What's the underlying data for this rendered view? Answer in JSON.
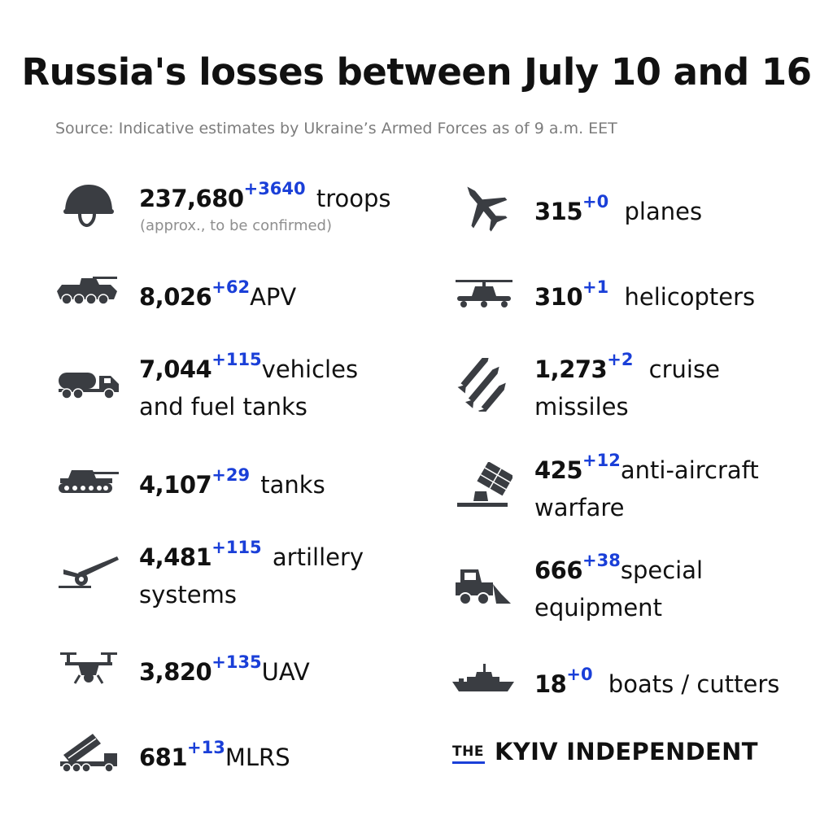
{
  "title": "Russia's losses between July 10 and 16",
  "source": "Source: Indicative estimates by Ukraine’s Armed Forces as of 9 a.m. EET",
  "colors": {
    "accent": "#1a3fd8",
    "icon": "#3a3d42",
    "text": "#111111",
    "muted": "#7d7d7d"
  },
  "items": {
    "troops": {
      "icon": "helmet-icon",
      "value": "237,680",
      "delta": "+3640",
      "label": "troops",
      "note": "(approx., to be confirmed)"
    },
    "apv": {
      "icon": "apc-icon",
      "value": "8,026",
      "delta": "+62",
      "label": "APV"
    },
    "vehicles": {
      "icon": "fuel-truck-icon",
      "value": "7,044",
      "delta": "+115",
      "label": "vehicles",
      "label2": "and fuel tanks"
    },
    "tanks": {
      "icon": "tank-icon",
      "value": "4,107",
      "delta": "+29",
      "label": "tanks"
    },
    "artillery": {
      "icon": "artillery-icon",
      "value": "4,481",
      "delta": "+115",
      "label": "artillery",
      "label2": "systems"
    },
    "uav": {
      "icon": "drone-icon",
      "value": "3,820",
      "delta": "+135",
      "label": "UAV"
    },
    "mlrs": {
      "icon": "mlrs-icon",
      "value": "681",
      "delta": "+13",
      "label": "MLRS"
    },
    "planes": {
      "icon": "jet-icon",
      "value": "315",
      "delta": "+0",
      "label": "planes"
    },
    "helicopters": {
      "icon": "helicopter-icon",
      "value": "310",
      "delta": "+1",
      "label": "helicopters"
    },
    "missiles": {
      "icon": "missiles-icon",
      "value": "1,273",
      "delta": "+2",
      "label": "cruise",
      "label2": "missiles"
    },
    "antiaircraft": {
      "icon": "anti-aircraft-icon",
      "value": "425",
      "delta": "+12",
      "label": "anti-aircraft",
      "label2": "warfare"
    },
    "special": {
      "icon": "bulldozer-icon",
      "value": "666",
      "delta": "+38",
      "label": "special",
      "label2": "equipment"
    },
    "boats": {
      "icon": "warship-icon",
      "value": "18",
      "delta": "+0",
      "label": "boats / cutters"
    }
  },
  "brand": {
    "the": "THE",
    "name": "KYIV INDEPENDENT"
  }
}
